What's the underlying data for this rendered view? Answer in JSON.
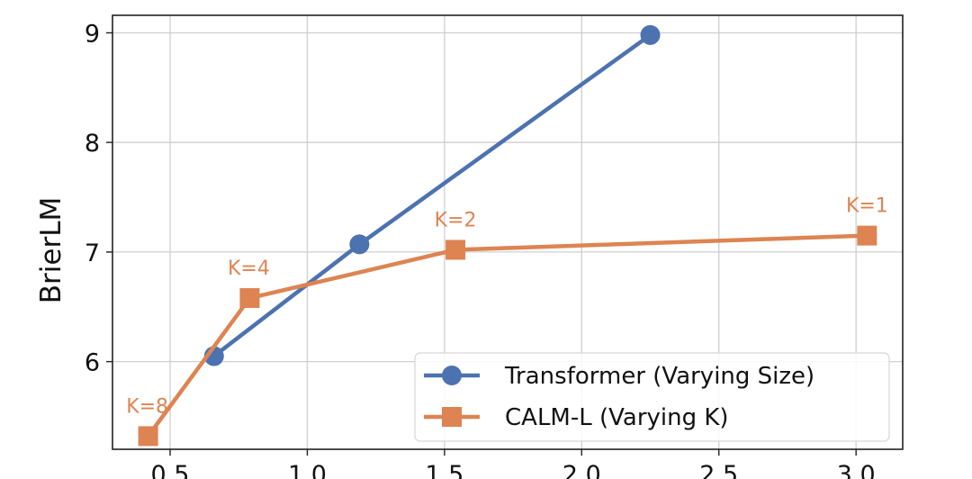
{
  "chart_data": {
    "type": "line",
    "title": "",
    "xlabel": "",
    "ylabel": "BrierLM",
    "xlim": [
      0.29,
      3.17
    ],
    "ylim": [
      5.2,
      9.16
    ],
    "xticks": [
      0.5,
      1.0,
      1.5,
      2.0,
      2.5,
      3.0
    ],
    "xtick_labels": [
      "0.5",
      "1.0",
      "1.5",
      "2.0",
      "2.5",
      "3.0"
    ],
    "yticks": [
      6,
      7,
      8,
      9
    ],
    "ytick_labels": [
      "6",
      "7",
      "8",
      "9"
    ],
    "grid": true,
    "legend_position": "lower right",
    "series": [
      {
        "name": "Transformer (Varying Size)",
        "color": "#4c72b0",
        "marker": "circle",
        "x": [
          0.66,
          1.19,
          2.25
        ],
        "y": [
          6.05,
          7.07,
          8.98
        ],
        "annotations": []
      },
      {
        "name": "CALM-L (Varying K)",
        "color": "#dd8452",
        "marker": "square",
        "x": [
          0.42,
          0.79,
          1.54,
          3.04
        ],
        "y": [
          5.32,
          6.58,
          7.02,
          7.15
        ],
        "annotations": [
          "K=8",
          "K=4",
          "K=2",
          "K=1"
        ]
      }
    ]
  }
}
